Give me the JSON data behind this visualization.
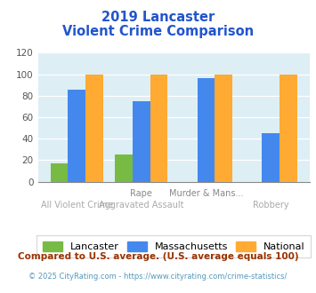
{
  "title_line1": "2019 Lancaster",
  "title_line2": "Violent Crime Comparison",
  "lancaster": [
    17,
    25,
    0,
    0
  ],
  "massachusetts": [
    86,
    75,
    96,
    45
  ],
  "national": [
    100,
    100,
    100,
    100
  ],
  "lancaster_color": "#77bb44",
  "massachusetts_color": "#4488ee",
  "national_color": "#ffaa33",
  "ylim": [
    0,
    120
  ],
  "yticks": [
    0,
    20,
    40,
    60,
    80,
    100,
    120
  ],
  "bg_color": "#ddeef4",
  "title_color": "#2255cc",
  "footnote1": "Compared to U.S. average. (U.S. average equals 100)",
  "footnote2": "© 2025 CityRating.com - https://www.cityrating.com/crime-statistics/",
  "footnote1_color": "#993300",
  "footnote2_color": "#5599bb",
  "legend_labels": [
    "Lancaster",
    "Massachusetts",
    "National"
  ],
  "xlabel_top": [
    "",
    "Rape",
    "Murder & Mans...",
    ""
  ],
  "xlabel_bot": [
    "All Violent Crime",
    "Aggravated Assault",
    "",
    "Robbery"
  ],
  "xlabel_top_color": "#888888",
  "xlabel_bot_color": "#aaaaaa"
}
